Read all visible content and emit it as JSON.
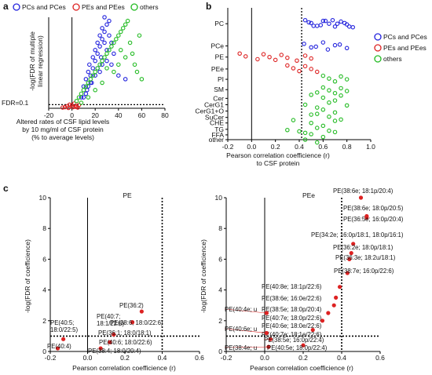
{
  "panel_labels": {
    "a": "a",
    "b": "b",
    "c": "c"
  },
  "legend": [
    {
      "label": "PCs and PCes",
      "color": "#2222dd"
    },
    {
      "label": "PEs and PEes",
      "color": "#dd2222"
    },
    {
      "label": "others",
      "color": "#22bb22"
    }
  ],
  "legend_b": {
    "pc": "PCs and PCes",
    "pe": "PEs and PEes",
    "other": "others"
  },
  "chart_data": [
    {
      "id": "a",
      "type": "scatter",
      "xlabel": [
        "Altered rates of CSF lipid levels",
        "by 10 mg/ml of CSF protein",
        "(% to average levels)"
      ],
      "ylabel": [
        "-log(FDR of multiple",
        "linear regression)"
      ],
      "xlim": [
        -20,
        80
      ],
      "ylim": [
        0,
        25
      ],
      "xticks": [
        -20,
        0,
        20,
        40,
        60,
        80
      ],
      "threshold_label": "FDR=0.1",
      "threshold_y": 1,
      "series": [
        {
          "name": "PCs and PCes",
          "color": "#2222dd",
          "points": [
            [
              10,
              6
            ],
            [
              12,
              8
            ],
            [
              14,
              10
            ],
            [
              15,
              12
            ],
            [
              16,
              9
            ],
            [
              18,
              11
            ],
            [
              18,
              14
            ],
            [
              20,
              13
            ],
            [
              20,
              16
            ],
            [
              22,
              15
            ],
            [
              22,
              18
            ],
            [
              24,
              17
            ],
            [
              24,
              20
            ],
            [
              25,
              14
            ],
            [
              26,
              19
            ],
            [
              26,
              22
            ],
            [
              28,
              18
            ],
            [
              28,
              21
            ],
            [
              28,
              25
            ],
            [
              30,
              23
            ],
            [
              30,
              16
            ],
            [
              32,
              20
            ],
            [
              32,
              24
            ],
            [
              34,
              18
            ],
            [
              12,
              4
            ],
            [
              14,
              6
            ],
            [
              16,
              7
            ],
            [
              20,
              9
            ],
            [
              22,
              11
            ],
            [
              26,
              12
            ],
            [
              30,
              13
            ],
            [
              34,
              12
            ],
            [
              40,
              9
            ],
            [
              46,
              8
            ],
            [
              8,
              3
            ],
            [
              10,
              3
            ],
            [
              24,
              10
            ],
            [
              36,
              15
            ],
            [
              13,
              5
            ],
            [
              17,
              7
            ]
          ]
        },
        {
          "name": "PEs and PEes",
          "color": "#dd2222",
          "points": [
            [
              -8,
              0.2
            ],
            [
              -6,
              0.3
            ],
            [
              -4,
              0.6
            ],
            [
              -2,
              1.0
            ],
            [
              0,
              0.8
            ],
            [
              2,
              1.3
            ],
            [
              3,
              0.4
            ],
            [
              4,
              0.5
            ],
            [
              5,
              0.2
            ],
            [
              6,
              0.9
            ],
            [
              -3,
              0.1
            ],
            [
              1,
              0.3
            ]
          ]
        },
        {
          "name": "others",
          "color": "#22bb22",
          "points": [
            [
              4,
              2
            ],
            [
              6,
              3
            ],
            [
              8,
              4
            ],
            [
              10,
              5
            ],
            [
              12,
              6
            ],
            [
              14,
              7
            ],
            [
              16,
              8
            ],
            [
              18,
              9
            ],
            [
              20,
              10
            ],
            [
              22,
              11
            ],
            [
              24,
              12
            ],
            [
              26,
              13
            ],
            [
              28,
              14
            ],
            [
              30,
              15
            ],
            [
              32,
              16
            ],
            [
              34,
              17
            ],
            [
              36,
              18
            ],
            [
              38,
              19
            ],
            [
              40,
              20
            ],
            [
              42,
              21
            ],
            [
              44,
              22
            ],
            [
              46,
              23
            ],
            [
              48,
              24
            ],
            [
              50,
              18
            ],
            [
              52,
              15
            ],
            [
              54,
              12
            ],
            [
              56,
              10
            ],
            [
              60,
              8
            ],
            [
              40,
              12
            ],
            [
              36,
              10
            ],
            [
              30,
              11
            ],
            [
              26,
              7
            ],
            [
              20,
              5
            ],
            [
              14,
              3
            ],
            [
              8,
              1.5
            ],
            [
              42,
              16
            ],
            [
              46,
              14
            ],
            [
              58,
              20
            ]
          ]
        }
      ]
    },
    {
      "id": "b",
      "type": "scatter",
      "xlabel": [
        "Pearson correlation coefficience (r)",
        "to CSF protein"
      ],
      "xlim": [
        -0.2,
        1.0
      ],
      "xticks": [
        -0.2,
        0.0,
        0.2,
        0.4,
        0.6,
        0.8,
        1.0
      ],
      "categories": [
        "PC",
        "PCe",
        "PE",
        "PEe",
        "PI",
        "SM",
        "Cer",
        "CerG1",
        "CerG1+O",
        "SuCer",
        "CHE",
        "TG",
        "FFA",
        "other"
      ],
      "threshold_x": 0.42,
      "series": [
        {
          "name": "PCs and PCes",
          "color": "#2222dd",
          "points": [
            [
              0.45,
              "PC"
            ],
            [
              0.5,
              "PC"
            ],
            [
              0.55,
              "PC"
            ],
            [
              0.6,
              "PC"
            ],
            [
              0.65,
              "PC"
            ],
            [
              0.7,
              "PC"
            ],
            [
              0.75,
              "PC"
            ],
            [
              0.8,
              "PC"
            ],
            [
              0.85,
              "PC"
            ],
            [
              0.48,
              "PC"
            ],
            [
              0.58,
              "PC"
            ],
            [
              0.68,
              "PC"
            ],
            [
              0.78,
              "PC"
            ],
            [
              0.52,
              "PC"
            ],
            [
              0.62,
              "PC"
            ],
            [
              0.72,
              "PC"
            ],
            [
              0.82,
              "PC"
            ],
            [
              0.44,
              "PCe"
            ],
            [
              0.54,
              "PCe"
            ],
            [
              0.64,
              "PCe"
            ],
            [
              0.74,
              "PCe"
            ],
            [
              0.5,
              "PCe"
            ],
            [
              0.6,
              "PCe"
            ],
            [
              0.7,
              "PCe"
            ],
            [
              0.8,
              "PCe"
            ]
          ]
        },
        {
          "name": "PEs and PEes",
          "color": "#dd2222",
          "points": [
            [
              -0.1,
              "PE"
            ],
            [
              -0.05,
              "PE"
            ],
            [
              0.05,
              "PE"
            ],
            [
              0.1,
              "PE"
            ],
            [
              0.15,
              "PE"
            ],
            [
              0.2,
              "PE"
            ],
            [
              0.25,
              "PE"
            ],
            [
              0.3,
              "PE"
            ],
            [
              0.38,
              "PE"
            ],
            [
              0.45,
              "PE"
            ],
            [
              0.5,
              "PE"
            ],
            [
              0.3,
              "PEe"
            ],
            [
              0.35,
              "PEe"
            ],
            [
              0.4,
              "PEe"
            ],
            [
              0.45,
              "PEe"
            ],
            [
              0.5,
              "PEe"
            ],
            [
              0.55,
              "PEe"
            ]
          ]
        },
        {
          "name": "others",
          "color": "#22bb22",
          "points": [
            [
              0.6,
              "PI"
            ],
            [
              0.65,
              "PI"
            ],
            [
              0.7,
              "PI"
            ],
            [
              0.75,
              "PI"
            ],
            [
              0.8,
              "PI"
            ],
            [
              0.55,
              "SM"
            ],
            [
              0.6,
              "SM"
            ],
            [
              0.65,
              "SM"
            ],
            [
              0.7,
              "SM"
            ],
            [
              0.75,
              "SM"
            ],
            [
              0.8,
              "SM"
            ],
            [
              0.5,
              "Cer"
            ],
            [
              0.6,
              "Cer"
            ],
            [
              0.7,
              "Cer"
            ],
            [
              0.75,
              "Cer"
            ],
            [
              0.45,
              "CerG1"
            ],
            [
              0.55,
              "CerG1"
            ],
            [
              0.65,
              "CerG1"
            ],
            [
              0.8,
              "CerG1"
            ],
            [
              0.5,
              "CerG1+O"
            ],
            [
              0.6,
              "CerG1+O"
            ],
            [
              0.7,
              "CerG1+O"
            ],
            [
              0.55,
              "SuCer"
            ],
            [
              0.65,
              "SuCer"
            ],
            [
              0.75,
              "SuCer"
            ],
            [
              0.35,
              "CHE"
            ],
            [
              0.5,
              "CHE"
            ],
            [
              0.6,
              "CHE"
            ],
            [
              0.7,
              "CHE"
            ],
            [
              0.3,
              "TG"
            ],
            [
              0.45,
              "TG"
            ],
            [
              0.55,
              "TG"
            ],
            [
              0.65,
              "TG"
            ],
            [
              0.4,
              "FFA"
            ],
            [
              0.5,
              "FFA"
            ],
            [
              0.6,
              "FFA"
            ],
            [
              0.7,
              "FFA"
            ],
            [
              0.45,
              "other"
            ],
            [
              0.55,
              "other"
            ]
          ]
        }
      ]
    },
    {
      "id": "c1",
      "type": "scatter",
      "title": "PE",
      "xlabel": "Pearson correlation coefficience (r)",
      "ylabel": "-log(FDR of coefficience)",
      "xlim": [
        -0.2,
        0.6
      ],
      "ylim": [
        0,
        10
      ],
      "xticks": [
        -0.2,
        0.0,
        0.2,
        0.4,
        0.6
      ],
      "yticks": [
        0,
        2,
        4,
        6,
        8,
        10
      ],
      "threshold_x": 0.4,
      "threshold_y": 1,
      "series": [
        {
          "name": "PEs and PEes",
          "color": "#dd2222",
          "points": [
            {
              "x": 0.29,
              "y": 2.6,
              "label": "PE(36:2)"
            },
            {
              "x": 0.24,
              "y": 1.9,
              "label": "PE(40:7; 18:1/22:6)"
            },
            {
              "x": 0.24,
              "y": 1.9,
              "label": "PE(38:6; 18:0/22:6)"
            },
            {
              "x": 0.14,
              "y": 1.1,
              "label": "PE(36:1; 18:0/18:1)"
            },
            {
              "x": 0.12,
              "y": 0.6,
              "label": "PE(40:6; 18:0/22:6)"
            },
            {
              "x": 0.07,
              "y": 0.2,
              "label": "PE(38:4; 18:0/20:4)"
            },
            {
              "x": -0.13,
              "y": 0.8,
              "label": "PE(40:5; 18:0/22:5)"
            },
            {
              "x": -0.16,
              "y": 0.2,
              "label": "PE(40:4)"
            }
          ]
        }
      ]
    },
    {
      "id": "c2",
      "type": "scatter",
      "title": "PEe",
      "xlabel": "Pearson correlation coefficience (r)",
      "ylabel": "-log(FDR of coefficience)",
      "xlim": [
        -0.2,
        0.6
      ],
      "ylim": [
        0,
        10
      ],
      "xticks": [
        -0.2,
        0.0,
        0.2,
        0.4,
        0.6
      ],
      "yticks": [
        0,
        2,
        4,
        6,
        8,
        10
      ],
      "threshold_x": 0.4,
      "threshold_y": 1,
      "series": [
        {
          "name": "PEs and PEes",
          "color": "#dd2222",
          "points": [
            {
              "x": 0.5,
              "y": 10.0,
              "label": "PE(38:6e; 18:1p/20:4)"
            },
            {
              "x": 0.53,
              "y": 8.8,
              "label": "PE(38:6e; 18:0p/20:5)"
            },
            {
              "x": 0.53,
              "y": 8.7,
              "label": "PE(36:5e; 16:0p/20:4)"
            },
            {
              "x": 0.46,
              "y": 7.0,
              "label": "PE(34:2e; 16:0p/18:1, 18:0p/16:1)"
            },
            {
              "x": 0.45,
              "y": 6.4,
              "label": "PE(36:2e; 18:0p/18:1)"
            },
            {
              "x": 0.44,
              "y": 6.0,
              "label": "PE(36:3e; 18:2u/18:1)"
            },
            {
              "x": 0.43,
              "y": 5.1,
              "label": "PE(38:7e; 16:0p/22:6)"
            },
            {
              "x": 0.39,
              "y": 4.2,
              "label": "PE(40:8e; 18:1p/22:6)"
            },
            {
              "x": 0.37,
              "y": 3.5,
              "label": "PE(38:6e; 16:0e/22:6)"
            },
            {
              "x": 0.36,
              "y": 3.0,
              "label": "PE(38:5e; 18:0p/20:4)"
            },
            {
              "x": 0.33,
              "y": 2.5,
              "label": "PE(40:7e; 18:0p/22:6)"
            },
            {
              "x": 0.3,
              "y": 2.0,
              "label": "PE(40:6e; 18:0e/22:6)"
            },
            {
              "x": 0.25,
              "y": 1.4,
              "label": "PE(40:7e; 18:1e/22:6)"
            },
            {
              "x": 0.01,
              "y": 2.5,
              "label": "PE(40:4e; u"
            },
            {
              "x": 0.01,
              "y": 1.2,
              "label": "PE(40:6e; u"
            },
            {
              "x": 0.03,
              "y": 0.8,
              "label": "PE(38:5e; 16:0p/22:4)"
            },
            {
              "x": 0.02,
              "y": 0.3,
              "label": "PE(38:4e; u"
            },
            {
              "x": 0.2,
              "y": 0.4,
              "label": "PE(40:5e; 18:0p/22:4)"
            }
          ]
        }
      ]
    }
  ]
}
